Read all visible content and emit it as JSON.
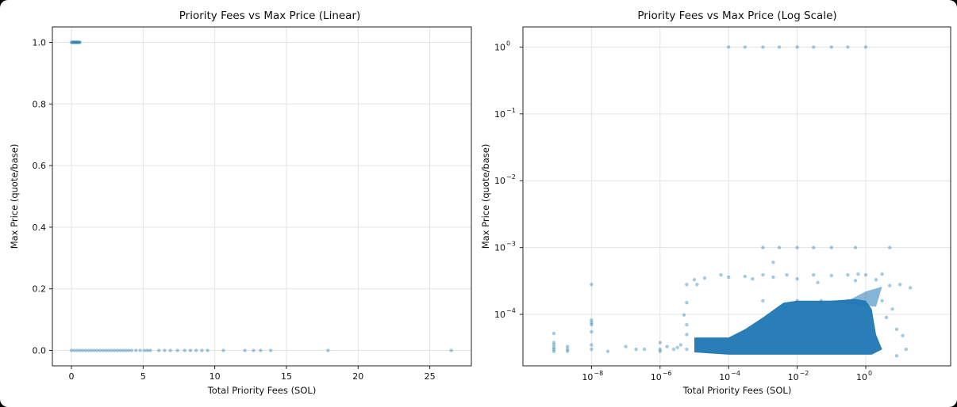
{
  "chart_data": [
    {
      "type": "scatter",
      "title": "Priority Fees vs Max Price (Linear)",
      "xlabel": "Total Priority Fees (SOL)",
      "ylabel": "Max Price (quote/base)",
      "xscale": "linear",
      "yscale": "linear",
      "xlim": [
        -1.33,
        27.9
      ],
      "ylim": [
        -0.05,
        1.05
      ],
      "xticks": [
        0,
        5,
        10,
        15,
        20,
        25
      ],
      "xtick_labels": [
        "0",
        "5",
        "10",
        "15",
        "20",
        "25"
      ],
      "yticks": [
        0.0,
        0.2,
        0.4,
        0.6,
        0.8,
        1.0
      ],
      "ytick_labels": [
        "0.0",
        "0.2",
        "0.4",
        "0.6",
        "0.8",
        "1.0"
      ],
      "grid": true,
      "marker_color": "#1f77b4",
      "marker_alpha": 0.4,
      "series": [
        {
          "points": [
            [
              0.0,
              1.0
            ],
            [
              0.05,
              1.0
            ],
            [
              0.1,
              1.0
            ],
            [
              0.15,
              1.0
            ],
            [
              0.2,
              1.0
            ],
            [
              0.25,
              1.0
            ],
            [
              0.3,
              1.0
            ],
            [
              0.35,
              1.0
            ],
            [
              0.4,
              1.0
            ],
            [
              0.45,
              1.0
            ],
            [
              0.5,
              1.0
            ],
            [
              0.55,
              1.0
            ],
            [
              0.6,
              1.0
            ],
            [
              0.0,
              0.0
            ],
            [
              0.2,
              0.0
            ],
            [
              0.4,
              0.0
            ],
            [
              0.6,
              0.0
            ],
            [
              0.8,
              0.0
            ],
            [
              1.0,
              0.0
            ],
            [
              1.2,
              0.0
            ],
            [
              1.4,
              0.0
            ],
            [
              1.6,
              0.0
            ],
            [
              1.8,
              0.0
            ],
            [
              2.0,
              0.0
            ],
            [
              2.2,
              0.0
            ],
            [
              2.4,
              0.0
            ],
            [
              2.6,
              0.0
            ],
            [
              2.8,
              0.0
            ],
            [
              3.0,
              0.0
            ],
            [
              3.2,
              0.0
            ],
            [
              3.4,
              0.0
            ],
            [
              3.6,
              0.0
            ],
            [
              3.8,
              0.0
            ],
            [
              4.0,
              0.0
            ],
            [
              4.2,
              0.0
            ],
            [
              4.5,
              0.0
            ],
            [
              4.8,
              0.0
            ],
            [
              5.1,
              0.0
            ],
            [
              5.3,
              0.0
            ],
            [
              5.5,
              0.0
            ],
            [
              6.1,
              0.0
            ],
            [
              6.5,
              0.0
            ],
            [
              6.9,
              0.0
            ],
            [
              7.4,
              0.0
            ],
            [
              7.9,
              0.0
            ],
            [
              8.3,
              0.0
            ],
            [
              8.7,
              0.0
            ],
            [
              9.1,
              0.0
            ],
            [
              9.5,
              0.0
            ],
            [
              10.6,
              0.0
            ],
            [
              12.1,
              0.0
            ],
            [
              12.7,
              0.0
            ],
            [
              13.2,
              0.0
            ],
            [
              13.9,
              0.0
            ],
            [
              17.9,
              0.0
            ],
            [
              26.5,
              0.0
            ]
          ]
        }
      ]
    },
    {
      "type": "scatter",
      "title": "Priority Fees vs Max Price (Log Scale)",
      "xlabel": "Total Priority Fees (SOL)",
      "ylabel": "Max Price (quote/base)",
      "xscale": "log",
      "yscale": "log",
      "xlim": [
        1e-10,
        300
      ],
      "ylim": [
        1.7e-05,
        2.0
      ],
      "xticks": [
        1e-08,
        1e-06,
        0.0001,
        0.01,
        1
      ],
      "xtick_labels": [
        [
          "10",
          "−8"
        ],
        [
          "10",
          "−6"
        ],
        [
          "10",
          "−4"
        ],
        [
          "10",
          "−2"
        ],
        [
          "10",
          "0"
        ]
      ],
      "yticks": [
        0.0001,
        0.001,
        0.01,
        0.1,
        1
      ],
      "ytick_labels": [
        [
          "10",
          "−4"
        ],
        [
          "10",
          "−3"
        ],
        [
          "10",
          "−2"
        ],
        [
          "10",
          "−1"
        ],
        [
          "10",
          "0"
        ]
      ],
      "grid": true,
      "marker_color": "#1f77b4",
      "marker_alpha": 0.4,
      "series": [
        {
          "description": "dense cloud between 1e-5 and 5 SOL, max price ~2.5e-5 to ~4e-4",
          "points": [
            [
              8e-10,
              5.2e-05
            ],
            [
              8e-10,
              3.8e-05
            ],
            [
              8e-10,
              3.5e-05
            ],
            [
              8e-10,
              3.2e-05
            ],
            [
              8e-10,
              3e-05
            ],
            [
              8e-10,
              2.8e-05
            ],
            [
              2e-09,
              3.3e-05
            ],
            [
              2e-09,
              3e-05
            ],
            [
              2e-09,
              2.8e-05
            ],
            [
              1e-08,
              0.00028
            ],
            [
              1e-08,
              8.2e-05
            ],
            [
              1e-08,
              7.5e-05
            ],
            [
              1e-08,
              7e-05
            ],
            [
              1e-08,
              5.5e-05
            ],
            [
              1e-08,
              3.5e-05
            ],
            [
              1e-08,
              3e-05
            ],
            [
              3e-08,
              2.8e-05
            ],
            [
              1e-07,
              3.3e-05
            ],
            [
              2e-07,
              3e-05
            ],
            [
              3.5e-07,
              3e-05
            ],
            [
              1e-06,
              3.8e-05
            ],
            [
              1e-06,
              3e-05
            ],
            [
              1e-06,
              2.8e-05
            ],
            [
              1.6e-06,
              3.3e-05
            ],
            [
              2.5e-06,
              3e-05
            ],
            [
              3.2e-06,
              3.2e-05
            ],
            [
              4e-06,
              3.5e-05
            ],
            [
              5e-06,
              9.8e-05
            ],
            [
              6e-06,
              0.00028
            ],
            [
              6e-06,
              0.00015
            ],
            [
              6e-06,
              7e-05
            ],
            [
              6e-06,
              5e-05
            ],
            [
              6e-06,
              3e-05
            ],
            [
              1e-05,
              0.00033
            ],
            [
              1.2e-05,
              0.00028
            ],
            [
              2e-05,
              0.00035
            ],
            [
              6e-05,
              0.00039
            ],
            [
              0.0001,
              0.00036
            ],
            [
              0.0003,
              0.00037
            ],
            [
              0.0005,
              0.00034
            ],
            [
              0.001,
              0.00039
            ],
            [
              0.002,
              0.00036
            ],
            [
              0.005,
              0.00039
            ],
            [
              0.01,
              0.00034
            ],
            [
              0.03,
              0.00039
            ],
            [
              0.1,
              0.00038
            ],
            [
              0.3,
              0.00039
            ],
            [
              0.6,
              0.0004
            ],
            [
              1.0,
              0.00039
            ],
            [
              3.0,
              0.0004
            ],
            [
              0.002,
              0.0006
            ],
            [
              0.04,
              0.0003
            ],
            [
              0.5,
              0.00032
            ],
            [
              2,
              0.00033
            ],
            [
              5,
              0.00027
            ],
            [
              10,
              0.00028
            ],
            [
              20,
              0.00025
            ],
            [
              0.001,
              0.00016
            ],
            [
              0.01,
              0.00016
            ],
            [
              0.05,
              0.00016
            ],
            [
              0.3,
              0.00016
            ],
            [
              3,
              0.00016
            ],
            [
              0.001,
              0.001
            ],
            [
              0.003,
              0.001
            ],
            [
              0.01,
              0.001
            ],
            [
              0.03,
              0.001
            ],
            [
              0.1,
              0.001
            ],
            [
              0.5,
              0.001
            ],
            [
              5,
              0.001
            ],
            [
              0.0001,
              1.0
            ],
            [
              0.0003,
              1.0
            ],
            [
              0.001,
              1.0
            ],
            [
              0.003,
              1.0
            ],
            [
              0.01,
              1.0
            ],
            [
              0.03,
              1.0
            ],
            [
              0.1,
              1.0
            ],
            [
              0.3,
              1.0
            ],
            [
              1,
              1.0
            ],
            [
              8,
              2.4e-05
            ],
            [
              15,
              3e-05
            ],
            [
              8,
              6e-05
            ],
            [
              12,
              4.8e-05
            ],
            [
              4,
              9e-05
            ],
            [
              6,
              0.00012
            ]
          ]
        }
      ]
    }
  ]
}
